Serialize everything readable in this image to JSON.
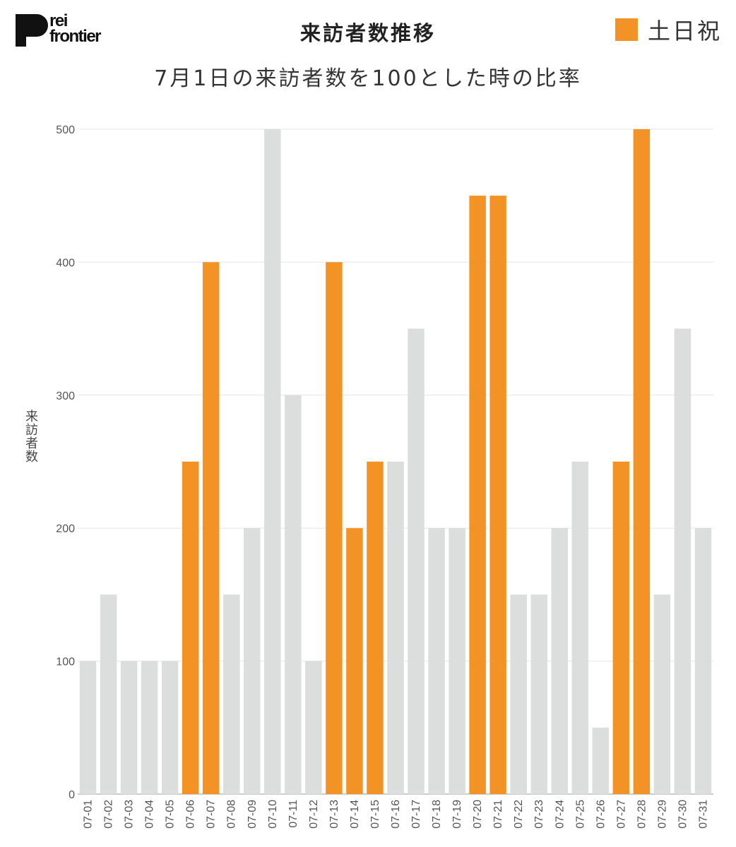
{
  "logo": {
    "line1": "rei",
    "line2": "frontier"
  },
  "chart_data": {
    "type": "bar",
    "title": "来訪者数推移",
    "subtitle": "7月1日の来訪者数を100とした時の比率",
    "ylabel": "来訪者数",
    "xlabel": "",
    "ylim": [
      0,
      500
    ],
    "yticks": [
      0,
      100,
      200,
      300,
      400,
      500
    ],
    "grid": true,
    "legend": {
      "position": "top-right",
      "entries": [
        {
          "label": "土日祝",
          "color": "#f39325"
        }
      ]
    },
    "colors": {
      "weekday": "#dcdddd",
      "holiday": "#f39325"
    },
    "categories": [
      "07-01",
      "07-02",
      "07-03",
      "07-04",
      "07-05",
      "07-06",
      "07-07",
      "07-08",
      "07-09",
      "07-10",
      "07-11",
      "07-12",
      "07-13",
      "07-14",
      "07-15",
      "07-16",
      "07-17",
      "07-18",
      "07-19",
      "07-20",
      "07-21",
      "07-22",
      "07-23",
      "07-24",
      "07-25",
      "07-26",
      "07-27",
      "07-28",
      "07-29",
      "07-30",
      "07-31"
    ],
    "values": [
      100,
      150,
      100,
      100,
      100,
      250,
      400,
      150,
      200,
      500,
      300,
      100,
      400,
      200,
      250,
      250,
      350,
      200,
      200,
      450,
      450,
      150,
      150,
      200,
      250,
      50,
      250,
      500,
      150,
      350,
      200
    ],
    "holiday": [
      false,
      false,
      false,
      false,
      false,
      true,
      true,
      false,
      false,
      false,
      false,
      false,
      true,
      true,
      true,
      false,
      false,
      false,
      false,
      true,
      true,
      false,
      false,
      false,
      false,
      false,
      true,
      true,
      false,
      false,
      false
    ]
  }
}
